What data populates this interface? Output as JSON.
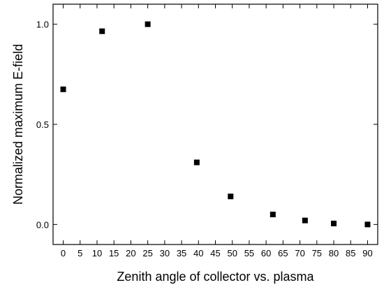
{
  "chart_data": {
    "type": "scatter",
    "title": "",
    "xlabel": "Zenith angle of collector vs. plasma",
    "ylabel": "Normalized maximum E-field",
    "xlim": [
      -3,
      93
    ],
    "ylim": [
      -0.1,
      1.1
    ],
    "x_ticks": [
      0,
      5,
      10,
      15,
      20,
      25,
      30,
      35,
      40,
      45,
      50,
      55,
      60,
      65,
      70,
      75,
      80,
      85,
      90
    ],
    "y_ticks": [
      0.0,
      0.5,
      1.0
    ],
    "y_tick_labels": [
      "0.0",
      "0.5",
      "1.0"
    ],
    "grid": false,
    "marker": "square",
    "marker_color": "#000000",
    "series": [
      {
        "x": [
          0,
          11.5,
          25,
          39.5,
          49.5,
          62,
          71.5,
          80,
          90
        ],
        "y": [
          0.675,
          0.965,
          1.0,
          0.31,
          0.14,
          0.05,
          0.02,
          0.005,
          0.0
        ]
      }
    ]
  }
}
